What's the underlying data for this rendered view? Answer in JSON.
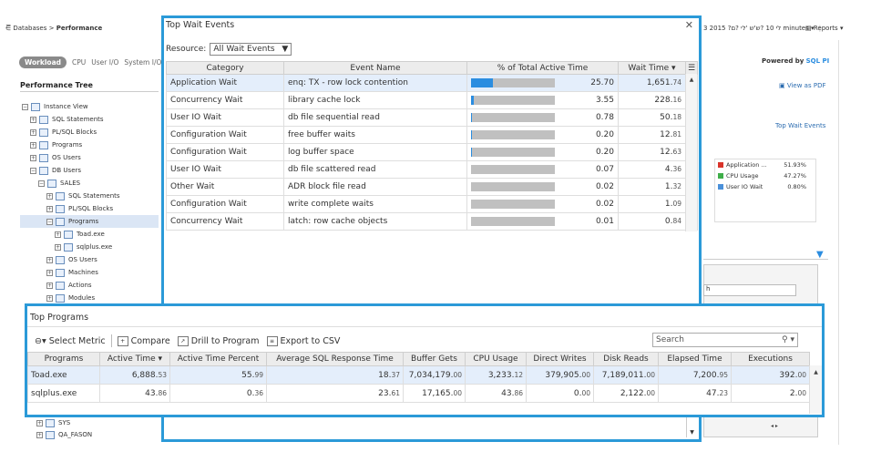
{
  "background": {
    "breadcrumb": {
      "root": "Databases",
      "current": "Performance"
    },
    "top_right_text": "3 2015 ?לי 10 ?ש'ש 'לי ?ם minutes",
    "reports_label": "Reports",
    "tabs": [
      "Workload",
      "CPU",
      "User I/O",
      "System I/O"
    ],
    "tree_title": "Performance Tree",
    "tree_items": [
      {
        "label": "Instance View"
      },
      {
        "label": "SQL Statements"
      },
      {
        "label": "PL/SQL Blocks"
      },
      {
        "label": "Programs"
      },
      {
        "label": "OS Users"
      },
      {
        "label": "DB Users"
      },
      {
        "label": "SALES"
      },
      {
        "label": "SQL Statements"
      },
      {
        "label": "PL/SQL Blocks"
      },
      {
        "label": "Programs"
      },
      {
        "label": "Toad.exe"
      },
      {
        "label": "sqlplus.exe"
      },
      {
        "label": "OS Users"
      },
      {
        "label": "Machines"
      },
      {
        "label": "Actions"
      },
      {
        "label": "Modules"
      }
    ],
    "tree_bottom_items": [
      {
        "label": "SYS"
      },
      {
        "label": "QA_FASON"
      }
    ],
    "powered_by": "Powered by",
    "powered_brand": "SQL PI",
    "view_pdf": "View as PDF",
    "top_wait_link": "Top Wait Events",
    "legend": [
      {
        "name": "Application ...",
        "value": "51.93%",
        "color": "#d9342b"
      },
      {
        "name": "CPU Usage",
        "value": "47.27%",
        "color": "#3fae49"
      },
      {
        "name": "User IO Wait",
        "value": "0.80%",
        "color": "#4a90d9"
      }
    ],
    "search2_value": "h"
  },
  "wait_dialog": {
    "title": "Top Wait Events",
    "resource_label": "Resource:",
    "resource_value": "All Wait Events",
    "columns": [
      "Category",
      "Event Name",
      "% of Total Active Time",
      "Wait Time"
    ],
    "rows": [
      {
        "category": "Application Wait",
        "event": "enq: TX - row lock contention",
        "pct": "25.70",
        "wait_int": "1,651.",
        "wait_dec": "74"
      },
      {
        "category": "Concurrency Wait",
        "event": "library cache lock",
        "pct": "3.55",
        "wait_int": "228.",
        "wait_dec": "16"
      },
      {
        "category": "User IO Wait",
        "event": "db file sequential read",
        "pct": "0.78",
        "wait_int": "50.",
        "wait_dec": "18"
      },
      {
        "category": "Configuration Wait",
        "event": "free buffer waits",
        "pct": "0.20",
        "wait_int": "12.",
        "wait_dec": "81"
      },
      {
        "category": "Configuration Wait",
        "event": "log buffer space",
        "pct": "0.20",
        "wait_int": "12.",
        "wait_dec": "63"
      },
      {
        "category": "User IO Wait",
        "event": "db file scattered read",
        "pct": "0.07",
        "wait_int": "4.",
        "wait_dec": "36"
      },
      {
        "category": "Other Wait",
        "event": "ADR block file read",
        "pct": "0.02",
        "wait_int": "1.",
        "wait_dec": "32"
      },
      {
        "category": "Configuration Wait",
        "event": "write complete waits",
        "pct": "0.02",
        "wait_int": "1.",
        "wait_dec": "09"
      },
      {
        "category": "Concurrency Wait",
        "event": "latch: row cache objects",
        "pct": "0.01",
        "wait_int": "0.",
        "wait_dec": "84"
      }
    ]
  },
  "programs": {
    "title": "Top Programs",
    "toolbar": {
      "select_metric": "Select Metric",
      "compare": "Compare",
      "drill": "Drill to Program",
      "export": "Export to CSV",
      "search_placeholder": "Search"
    },
    "columns": [
      "Programs",
      "Active Time",
      "Active Time Percent",
      "Average SQL Response Time",
      "Buffer Gets",
      "CPU Usage",
      "Direct Writes",
      "Disk Reads",
      "Elapsed Time",
      "Executions"
    ],
    "rows": [
      {
        "name": "Toad.exe",
        "cells": [
          [
            "6,888.",
            "53"
          ],
          [
            "55.",
            "99"
          ],
          [
            "18.",
            "37"
          ],
          [
            "7,034,179.",
            "00"
          ],
          [
            "3,233.",
            "12"
          ],
          [
            "379,905.",
            "00"
          ],
          [
            "7,189,011.",
            "00"
          ],
          [
            "7,200.",
            "95"
          ],
          [
            "392.",
            "00"
          ]
        ]
      },
      {
        "name": "sqlplus.exe",
        "cells": [
          [
            "43.",
            "86"
          ],
          [
            "0.",
            "36"
          ],
          [
            "23.",
            "61"
          ],
          [
            "17,165.",
            "00"
          ],
          [
            "43.",
            "86"
          ],
          [
            "0.",
            "00"
          ],
          [
            "2,122.",
            "00"
          ],
          [
            "47.",
            "23"
          ],
          [
            "2.",
            "00"
          ]
        ]
      }
    ]
  },
  "colors": {
    "accent": "#2b9ad8",
    "bar_fill": "#2b8de0",
    "bar_bg": "#c0c0c0",
    "selected_row": "#e4eefb"
  }
}
